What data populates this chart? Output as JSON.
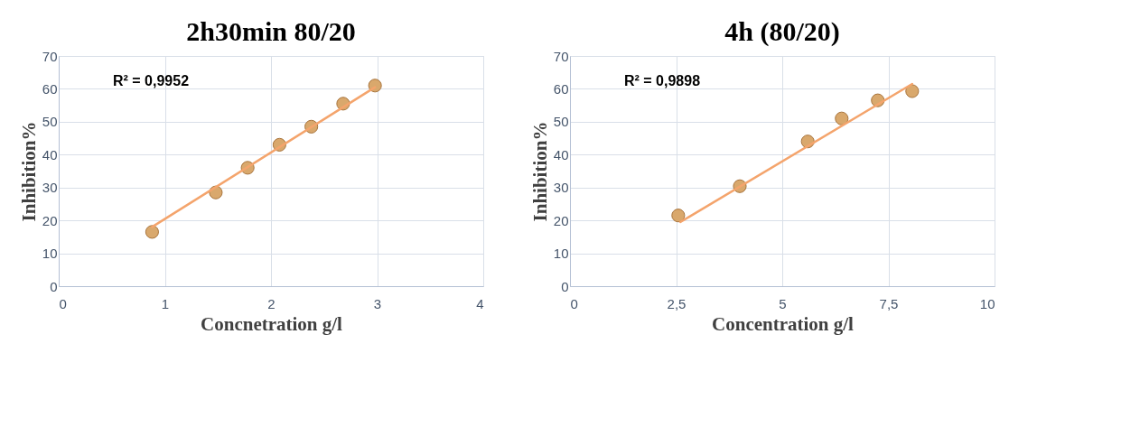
{
  "chart_data": [
    {
      "type": "scatter",
      "title": "2h30min 80/20",
      "xlabel": "Concnetration g/l",
      "ylabel": "Inhibition%",
      "xlim": [
        0,
        4
      ],
      "xticks": [
        0,
        1,
        2,
        3,
        4
      ],
      "ylim": [
        0,
        70
      ],
      "yticks": [
        0,
        10,
        20,
        30,
        40,
        50,
        60,
        70
      ],
      "grid": true,
      "annotations": [
        "R² = 0,9952"
      ],
      "series": [
        {
          "color": "#d9a86c",
          "marker": "circle",
          "x": [
            0.88,
            1.48,
            1.78,
            2.08,
            2.38,
            2.68,
            2.98
          ],
          "values": [
            16.5,
            28.5,
            36,
            43,
            48.5,
            55.5,
            61
          ]
        },
        {
          "type": "line",
          "color": "#f4a46c",
          "marker": "none",
          "line_style": "solid",
          "x": [
            0.88,
            2.98
          ],
          "values": [
            18,
            60.5
          ]
        }
      ]
    },
    {
      "type": "scatter",
      "title": "4h (80/20)",
      "xlabel": "Concentration g/l",
      "ylabel": "Inhibition%",
      "xlim": [
        0,
        10
      ],
      "xticks": [
        0,
        {
          "value": 2.5,
          "label": "2,5"
        },
        5,
        {
          "value": 7.5,
          "label": "7,5"
        },
        10
      ],
      "ylim": [
        0,
        70
      ],
      "yticks": [
        0,
        10,
        20,
        30,
        40,
        50,
        60,
        70
      ],
      "grid": true,
      "annotations": [
        "R² = 0,9898"
      ],
      "series": [
        {
          "color": "#d9a86c",
          "marker": "circle",
          "x": [
            2.55,
            4.0,
            5.6,
            6.4,
            7.25,
            8.06
          ],
          "values": [
            21.5,
            30.4,
            44,
            51,
            56.5,
            59.3
          ]
        },
        {
          "type": "line",
          "color": "#f4a46c",
          "marker": "none",
          "line_style": "solid",
          "x": [
            2.6,
            8.06
          ],
          "values": [
            19.5,
            61.5
          ]
        }
      ]
    }
  ]
}
